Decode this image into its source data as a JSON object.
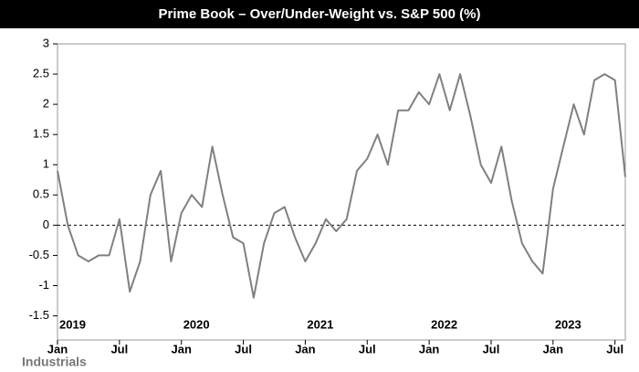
{
  "chart_data": {
    "type": "line",
    "title": "Prime Book – Over/Under-Weight vs. S&P 500 (%)",
    "footer": "Industrials",
    "x": [
      "2019-01",
      "2019-02",
      "2019-03",
      "2019-04",
      "2019-05",
      "2019-06",
      "2019-07",
      "2019-08",
      "2019-09",
      "2019-10",
      "2019-11",
      "2019-12",
      "2020-01",
      "2020-02",
      "2020-03",
      "2020-04",
      "2020-05",
      "2020-06",
      "2020-07",
      "2020-08",
      "2020-09",
      "2020-10",
      "2020-11",
      "2020-12",
      "2021-01",
      "2021-02",
      "2021-03",
      "2021-04",
      "2021-05",
      "2021-06",
      "2021-07",
      "2021-08",
      "2021-09",
      "2021-10",
      "2021-11",
      "2021-12",
      "2022-01",
      "2022-02",
      "2022-03",
      "2022-04",
      "2022-05",
      "2022-06",
      "2022-07",
      "2022-08",
      "2022-09",
      "2022-10",
      "2022-11",
      "2022-12",
      "2023-01",
      "2023-02",
      "2023-03",
      "2023-04",
      "2023-05",
      "2023-06",
      "2023-07",
      "2023-08"
    ],
    "series": [
      {
        "name": "Industrials",
        "color": "#808080",
        "values": [
          0.9,
          0.0,
          -0.5,
          -0.6,
          -0.5,
          -0.5,
          0.1,
          -1.1,
          -0.6,
          0.5,
          0.9,
          -0.6,
          0.2,
          0.5,
          0.3,
          1.3,
          0.5,
          -0.2,
          -0.3,
          -1.2,
          -0.3,
          0.2,
          0.3,
          -0.2,
          -0.6,
          -0.3,
          0.1,
          -0.1,
          0.1,
          0.9,
          1.1,
          1.5,
          1.0,
          1.9,
          1.9,
          2.2,
          2.0,
          2.5,
          1.9,
          2.5,
          1.8,
          1.0,
          0.7,
          1.3,
          0.4,
          -0.3,
          -0.6,
          -0.8,
          0.6,
          1.3,
          2.0,
          1.5,
          2.4,
          2.5,
          2.4,
          0.8
        ]
      }
    ],
    "xlim": [
      "2019-01",
      "2023-08"
    ],
    "xticks": [
      {
        "value": "2019-01",
        "label": "Jan"
      },
      {
        "value": "2019-07",
        "label": "Jul"
      },
      {
        "value": "2020-01",
        "label": "Jan"
      },
      {
        "value": "2020-07",
        "label": "Jul"
      },
      {
        "value": "2021-01",
        "label": "Jan"
      },
      {
        "value": "2021-07",
        "label": "Jul"
      },
      {
        "value": "2022-01",
        "label": "Jan"
      },
      {
        "value": "2022-07",
        "label": "Jul"
      },
      {
        "value": "2023-01",
        "label": "Jan"
      },
      {
        "value": "2023-07",
        "label": "Jul"
      }
    ],
    "year_labels": [
      {
        "value": "2019-01",
        "label": "2019"
      },
      {
        "value": "2020-01",
        "label": "2020"
      },
      {
        "value": "2021-01",
        "label": "2021"
      },
      {
        "value": "2022-01",
        "label": "2022"
      },
      {
        "value": "2023-01",
        "label": "2023"
      }
    ],
    "ylim": [
      -1.9,
      3
    ],
    "yticks": [
      -1.5,
      -1,
      -0.5,
      0,
      0.5,
      1,
      1.5,
      2,
      2.5,
      3
    ],
    "hline": 0
  }
}
